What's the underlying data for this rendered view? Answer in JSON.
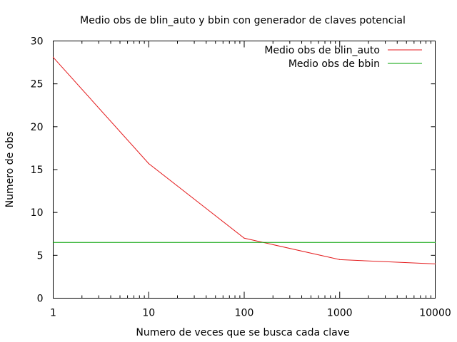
{
  "chart_data": {
    "type": "line",
    "title": "Medio obs de blin_auto y bbin con generador de claves potencial",
    "xlabel": "Numero de veces que se busca cada clave",
    "ylabel": "Numero de obs",
    "x_scale": "log",
    "xlim": [
      1,
      10000
    ],
    "ylim": [
      0,
      30
    ],
    "x_ticks": [
      1,
      10,
      100,
      1000,
      10000
    ],
    "x_tick_labels": [
      "1",
      "10",
      "100",
      "1000",
      "10000"
    ],
    "y_ticks": [
      0,
      5,
      10,
      15,
      20,
      25,
      30
    ],
    "y_tick_labels": [
      "0",
      "5",
      "10",
      "15",
      "20",
      "25",
      "30"
    ],
    "grid": false,
    "legend_position": "top-right",
    "series": [
      {
        "name": "Medio obs de blin_auto",
        "color": "#e41a1c",
        "x": [
          1,
          10,
          100,
          1000,
          10000
        ],
        "y": [
          28.1,
          15.7,
          7.0,
          4.5,
          4.0
        ]
      },
      {
        "name": "Medio obs de bbin",
        "color": "#00a000",
        "x": [
          1,
          10000
        ],
        "y": [
          6.5,
          6.5
        ]
      }
    ]
  }
}
